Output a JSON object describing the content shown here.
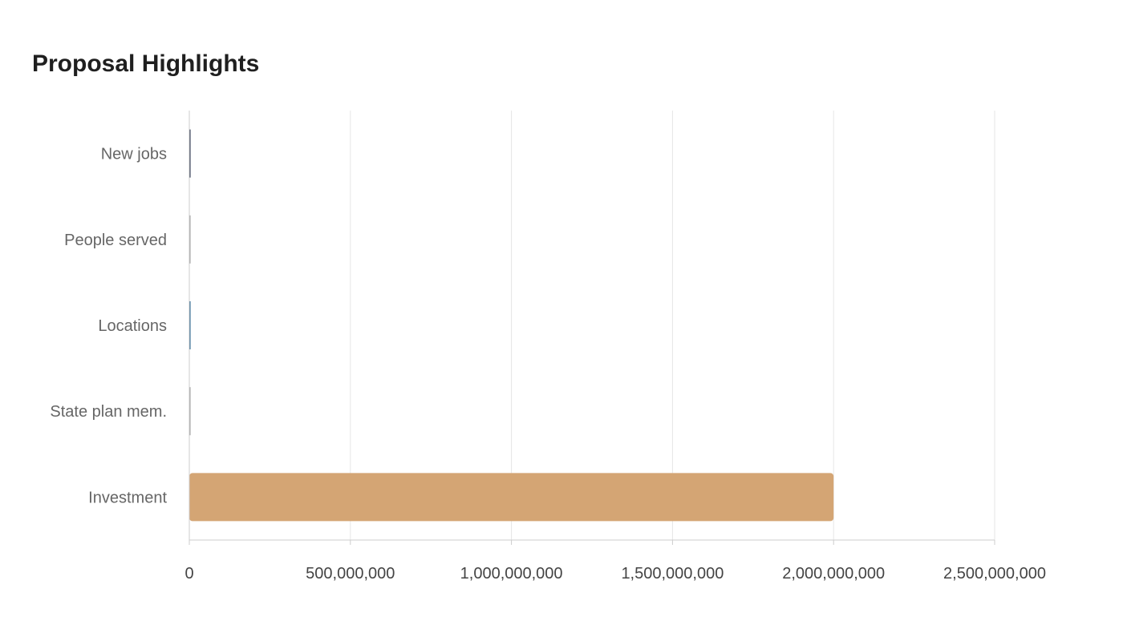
{
  "title": "Proposal Highlights",
  "colors": {
    "background": "#ffffff",
    "grid": "#e6e6e6",
    "axis": "#cccccc",
    "label": "#666666",
    "tick": "#444444",
    "title": "#1f1f1f"
  },
  "chart_data": {
    "type": "bar",
    "orientation": "horizontal",
    "title": "Proposal Highlights",
    "categories": [
      "New jobs",
      "People served",
      "Locations",
      "State plan mem.",
      "Investment"
    ],
    "values": [
      1000,
      180000,
      13,
      80000,
      2000000000
    ],
    "bar_colors": [
      "#1f2a44",
      "#9e9e9e",
      "#1f5f8b",
      "#9e9e9e",
      "#d4a574"
    ],
    "xlim": [
      0,
      2500000000
    ],
    "xticks": [
      0,
      500000000,
      1000000000,
      1500000000,
      2000000000,
      2500000000
    ],
    "xtick_labels": [
      "0",
      "500,000,000",
      "1,000,000,000",
      "1,500,000,000",
      "2,000,000,000",
      "2,500,000,000"
    ],
    "grid": true,
    "legend": "none"
  }
}
